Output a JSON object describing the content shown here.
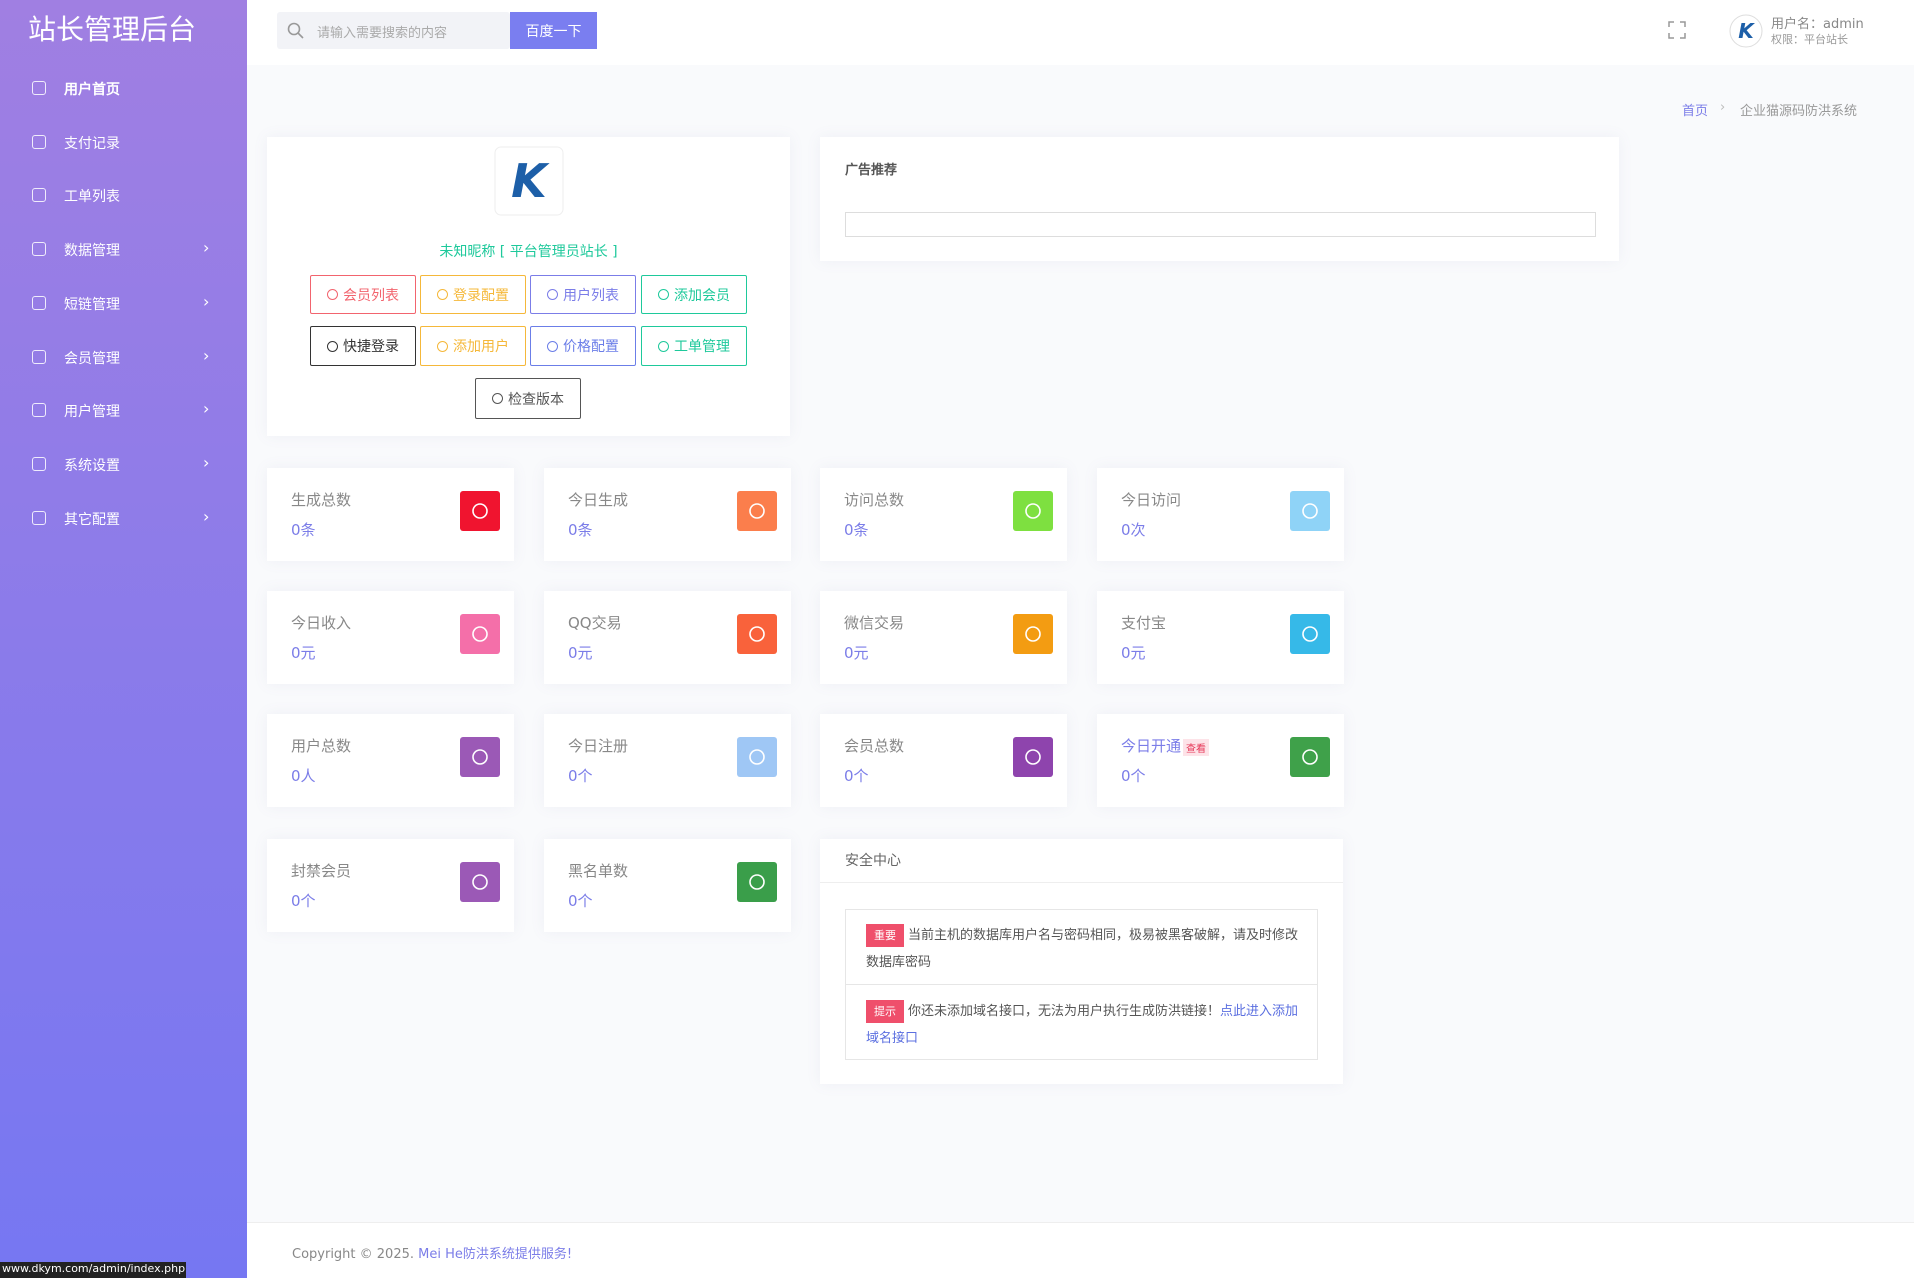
{
  "sidebar": {
    "title": "站长管理后台",
    "menu": [
      "用户首页",
      "支付记录",
      "工单列表",
      "数据管理",
      "短链管理",
      "会员管理",
      "用户管理",
      "系统设置",
      "其它配置"
    ]
  },
  "header": {
    "search_placeholder": "请输入需要搜索的内容",
    "search_button": "百度一下",
    "user_name": "用户名：admin",
    "user_role": "权限：平台站长"
  },
  "breadcrumb": [
    "首页",
    "企业猫源码防洪系统"
  ],
  "profile": {
    "name": "未知昵称 [ 平台管理员站长 ]",
    "buttons": [
      {
        "label": "会员列表",
        "color": "#f2646e"
      },
      {
        "label": "登录配置",
        "color": "#f5b83a"
      },
      {
        "label": "用户列表",
        "color": "#7b7de8"
      },
      {
        "label": "添加会员",
        "color": "#1ec99b"
      },
      {
        "label": "快捷登录",
        "color": "#333333"
      },
      {
        "label": "添加用户",
        "color": "#f5b83a"
      },
      {
        "label": "价格配置",
        "color": "#6b7ee8"
      },
      {
        "label": "工单管理",
        "color": "#1ec99b"
      },
      {
        "label": "检查版本",
        "color": "#555555"
      }
    ]
  },
  "ad": {
    "title": "广告推荐"
  },
  "stats": [
    {
      "label": "生成总数",
      "value": "0条",
      "color": "#f0142f"
    },
    {
      "label": "今日生成",
      "value": "0条",
      "color": "#fb7e4c"
    },
    {
      "label": "访问总数",
      "value": "0条",
      "color": "#7ee040"
    },
    {
      "label": "今日访问",
      "value": "0次",
      "color": "#8fd3f7"
    },
    {
      "label": "今日收入",
      "value": "0元",
      "color": "#f46fa9"
    },
    {
      "label": "QQ交易",
      "value": "0元",
      "color": "#f9623b"
    },
    {
      "label": "微信交易",
      "value": "0元",
      "color": "#f39c12"
    },
    {
      "label": "支付宝",
      "value": "0元",
      "color": "#36b9e8"
    },
    {
      "label": "用户总数",
      "value": "0人",
      "color": "#9b59b6"
    },
    {
      "label": "今日注册",
      "value": "0个",
      "color": "#9fc7f5"
    },
    {
      "label": "会员总数",
      "value": "0个",
      "color": "#8e44ad"
    },
    {
      "label": "今日开通",
      "badge": "查看",
      "value": "0个",
      "color": "#3fa14a"
    },
    {
      "label": "封禁会员",
      "value": "0个",
      "color": "#9b59b6"
    },
    {
      "label": "黑名单数",
      "value": "0个",
      "color": "#3a9e4a"
    }
  ],
  "security": {
    "title": "安全中心",
    "items": [
      {
        "tag": "重要",
        "text": "当前主机的数据库用户名与密码相同，极易被黑客破解，请及时修改数据库密码"
      },
      {
        "tag": "提示",
        "text": "你还未添加域名接口，无法为用户执行生成防洪链接！",
        "link": "点此进入添加域名接口"
      }
    ]
  },
  "footer": {
    "copyright": "Copyright © 2025. ",
    "service": "Mei He防洪系统提供服务!"
  },
  "status_bar": "www.dkym.com/admin/index.php"
}
